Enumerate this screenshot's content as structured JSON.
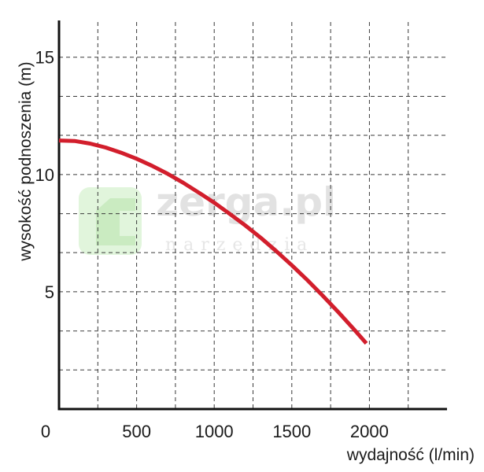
{
  "watermark": {
    "brand": "zerga.pl",
    "tagline": "narzędzia"
  },
  "chart_data": {
    "type": "line",
    "xlabel": "wydajność (l/min)",
    "ylabel": "wysokość podnoszenia (m)",
    "xlim": [
      0,
      2500
    ],
    "ylim": [
      0,
      16.5
    ],
    "xticks": [
      0,
      500,
      1000,
      1500,
      2000
    ],
    "yticks": [
      5,
      10,
      15
    ],
    "x_gridlines": [
      250,
      500,
      750,
      1000,
      1250,
      1500,
      1750,
      2000,
      2250
    ],
    "y_gridlines": [
      1.67,
      3.33,
      5,
      6.67,
      8.33,
      10,
      11.67,
      13.33,
      15
    ],
    "grid": true,
    "series": [
      {
        "color": "#d21e2c",
        "x": [
          0,
          100,
          200,
          300,
          400,
          500,
          600,
          700,
          800,
          900,
          1000,
          1100,
          1200,
          1300,
          1400,
          1500,
          1600,
          1700,
          1800,
          1900,
          1980
        ],
        "y": [
          11.45,
          11.43,
          11.32,
          11.15,
          10.93,
          10.67,
          10.37,
          10.03,
          9.65,
          9.23,
          8.8,
          8.32,
          7.83,
          7.3,
          6.73,
          6.13,
          5.5,
          4.83,
          4.13,
          3.4,
          2.8
        ]
      }
    ]
  }
}
